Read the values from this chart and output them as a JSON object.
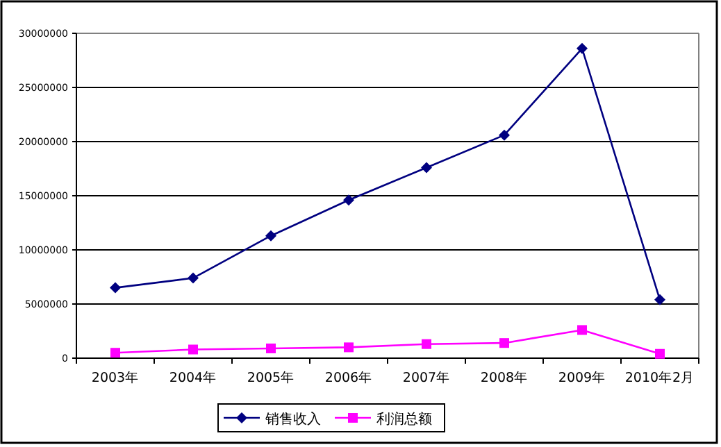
{
  "chart_data": {
    "type": "line",
    "categories": [
      "2003年",
      "2004年",
      "2005年",
      "2006年",
      "2007年",
      "2008年",
      "2009年",
      "2010年2月"
    ],
    "series": [
      {
        "name": "销售收入",
        "color": "#000080",
        "marker": "diamond",
        "values": [
          6500000,
          7400000,
          11300000,
          14600000,
          17600000,
          20600000,
          28600000,
          5400000
        ]
      },
      {
        "name": "利润总额",
        "color": "#ff00ff",
        "marker": "square",
        "values": [
          500000,
          800000,
          900000,
          1000000,
          1300000,
          1400000,
          2600000,
          400000
        ]
      }
    ],
    "ylim": [
      0,
      30000000
    ],
    "yticks": [
      0,
      5000000,
      10000000,
      15000000,
      20000000,
      25000000,
      30000000
    ],
    "grid": "y",
    "legend": "bottom"
  }
}
